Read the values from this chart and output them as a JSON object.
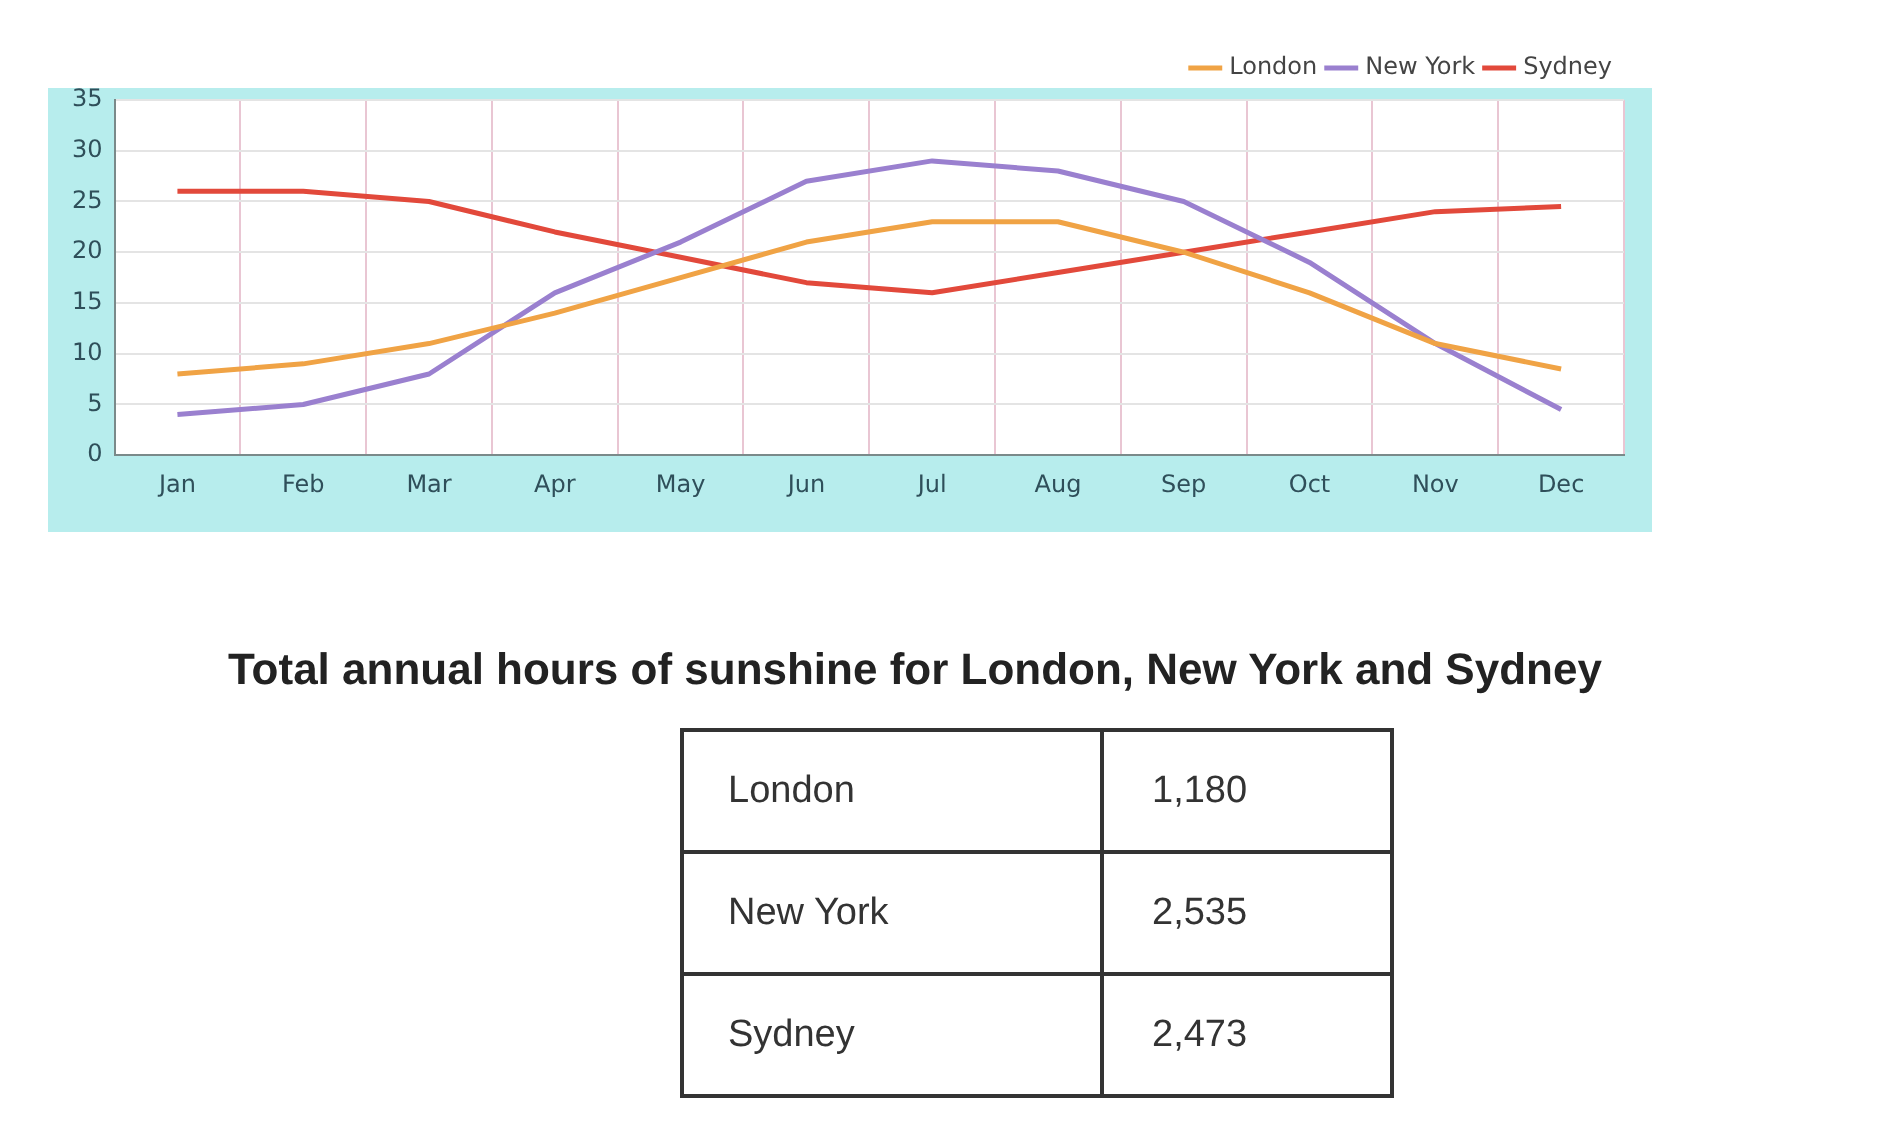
{
  "chart_data": [
    {
      "type": "line",
      "categories": [
        "Jan",
        "Feb",
        "Mar",
        "Apr",
        "May",
        "Jun",
        "Jul",
        "Aug",
        "Sep",
        "Oct",
        "Nov",
        "Dec"
      ],
      "series": [
        {
          "name": "London",
          "color": "#f0a345",
          "values": [
            8,
            9,
            11,
            14,
            17.5,
            21,
            23,
            23,
            20,
            16,
            11,
            8.5
          ]
        },
        {
          "name": "New York",
          "color": "#9a80cf",
          "values": [
            4,
            5,
            8,
            16,
            21,
            27,
            29,
            28,
            25,
            19,
            11,
            4.5
          ]
        },
        {
          "name": "Sydney",
          "color": "#e2493b",
          "values": [
            26,
            26,
            25,
            22,
            19.5,
            17,
            16,
            18,
            20,
            22,
            24,
            24.5
          ]
        }
      ],
      "ylim": [
        0,
        35
      ],
      "yticks": [
        0,
        5,
        10,
        15,
        20,
        25,
        30,
        35
      ],
      "grid": true,
      "legend": "top right",
      "marker": "none",
      "line_style": "solid"
    },
    {
      "type": "other",
      "title": "Total annual hours of sunshine for London, New York and Sydney",
      "categories": [
        "London",
        "New York",
        "Sydney"
      ],
      "value_labels": [
        "1,180",
        "2,535",
        "2,473"
      ]
    }
  ]
}
